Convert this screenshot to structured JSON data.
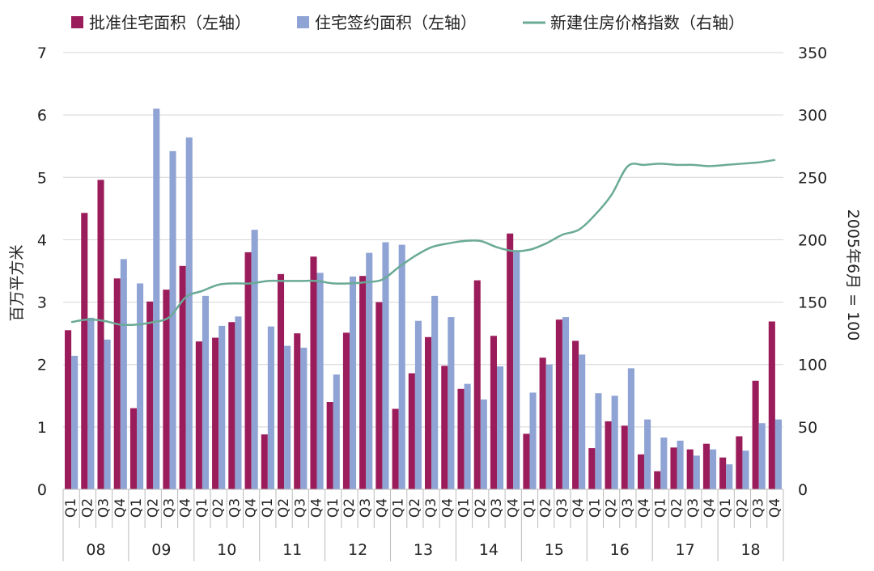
{
  "chart_data": {
    "type": "bar",
    "legend": {
      "placement": "top",
      "entries": [
        {
          "label": "批准住宅面积（左轴）",
          "kind": "bar",
          "color": "#9b1c5a"
        },
        {
          "label": "住宅签约面积（左轴）",
          "kind": "bar",
          "color": "#8fa3d4"
        },
        {
          "label": "新建住房价格指数（右轴）",
          "kind": "line",
          "color": "#6aaa96"
        }
      ]
    },
    "ylabel": "百万平方米",
    "y2label": "2005年6月 = 100",
    "ylim": [
      0,
      7
    ],
    "yticks": [
      "0",
      "1",
      "2",
      "3",
      "4",
      "5",
      "6",
      "7"
    ],
    "y2lim": [
      0,
      350
    ],
    "y2ticks": [
      "0",
      "50",
      "100",
      "150",
      "200",
      "250",
      "300",
      "350"
    ],
    "grid": true,
    "quarters": [
      "Q1",
      "Q2",
      "Q3",
      "Q4"
    ],
    "years": [
      "08",
      "09",
      "10",
      "11",
      "12",
      "13",
      "14",
      "15",
      "16",
      "17",
      "18"
    ],
    "series": [
      {
        "name": "批准住宅面积（左轴）",
        "color": "#9b1c5a",
        "axis": "left",
        "values": [
          2.55,
          4.43,
          4.96,
          3.38,
          1.3,
          3.01,
          3.2,
          3.58,
          2.37,
          2.43,
          2.68,
          3.8,
          0.88,
          3.45,
          2.5,
          3.73,
          1.4,
          2.51,
          3.42,
          3.0,
          1.29,
          1.86,
          2.44,
          1.98,
          1.61,
          3.35,
          2.46,
          4.1,
          0.89,
          2.11,
          2.72,
          2.38,
          0.66,
          1.09,
          1.02,
          0.56,
          0.29,
          0.67,
          0.64,
          0.73,
          0.51,
          0.85,
          1.74,
          2.69
        ]
      },
      {
        "name": "住宅签约面积（左轴）",
        "color": "#8fa3d4",
        "axis": "left",
        "values": [
          2.14,
          2.75,
          2.4,
          3.69,
          3.3,
          6.1,
          5.42,
          5.64,
          3.1,
          2.62,
          2.77,
          4.16,
          2.61,
          2.3,
          2.27,
          3.47,
          1.84,
          3.41,
          3.79,
          3.96,
          3.92,
          2.7,
          3.1,
          2.76,
          1.69,
          1.44,
          1.97,
          3.82,
          1.55,
          2.0,
          2.76,
          2.16,
          1.54,
          1.5,
          1.94,
          1.12,
          0.83,
          0.78,
          0.54,
          0.64,
          0.4,
          0.62,
          1.06,
          1.12
        ]
      },
      {
        "name": "新建住房价格指数（右轴）",
        "color": "#6aaa96",
        "axis": "right",
        "values": [
          134,
          136,
          135,
          132,
          132,
          134,
          138,
          154,
          159,
          164,
          165,
          165,
          167,
          167,
          167,
          167,
          165,
          165,
          166,
          168,
          178,
          187,
          194,
          197,
          199,
          199,
          194,
          191,
          192,
          197,
          204,
          208,
          220,
          236,
          259,
          260,
          261,
          260,
          260,
          259,
          260,
          261,
          262,
          264
        ]
      }
    ]
  }
}
